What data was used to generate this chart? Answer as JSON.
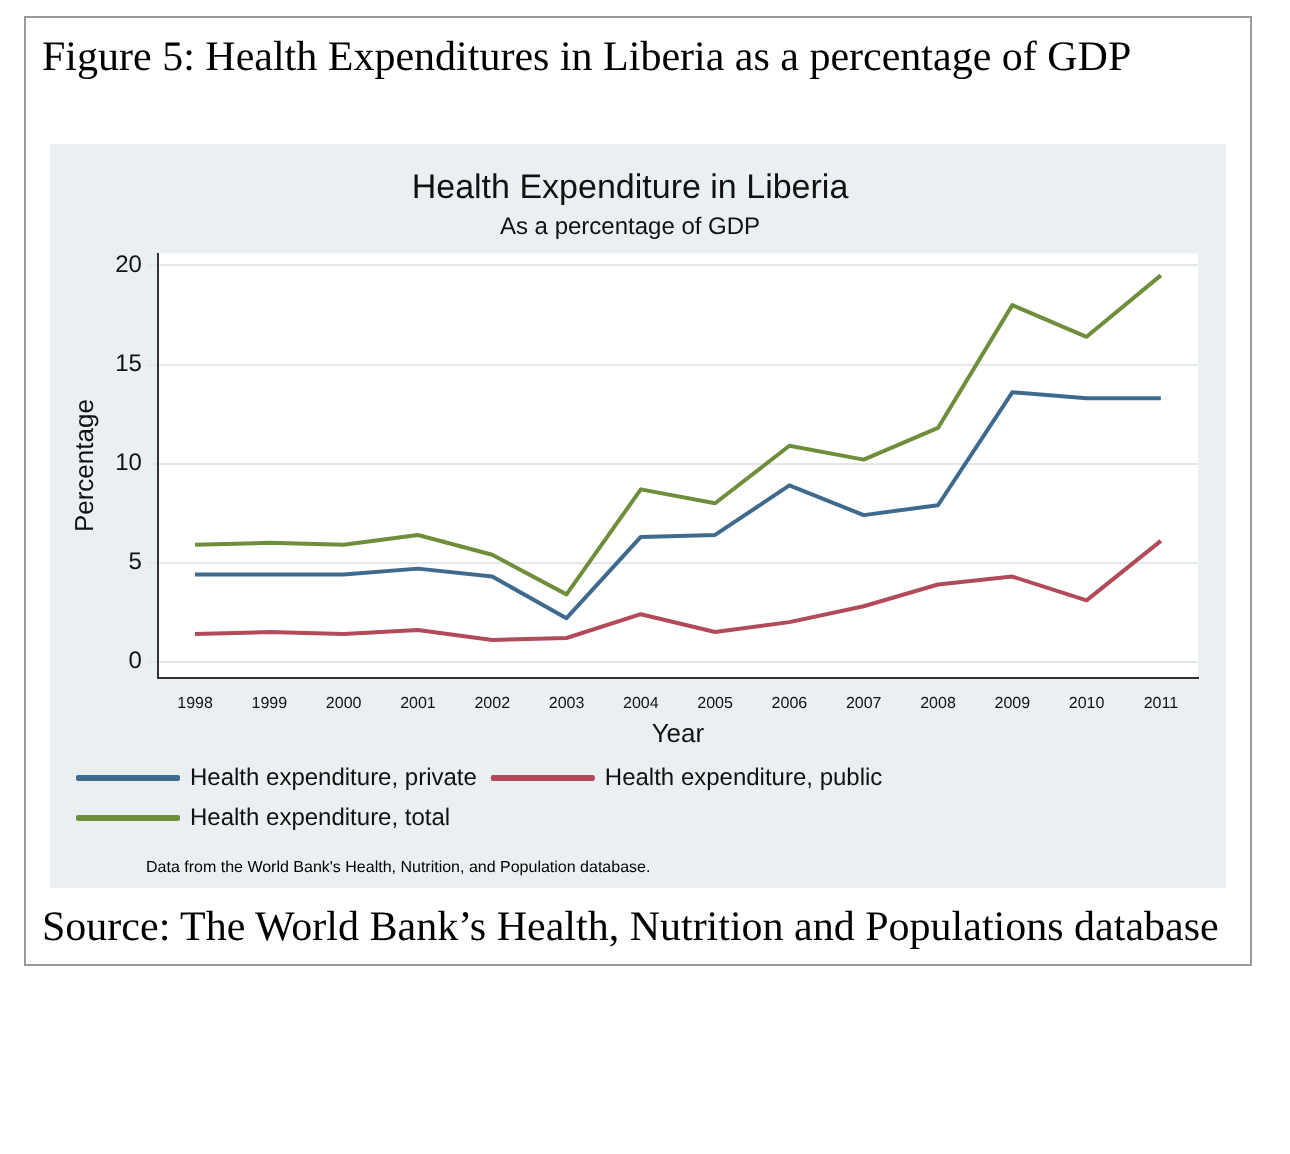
{
  "chart_data": {
    "type": "line",
    "title": "Health Expenditure in Liberia",
    "subtitle": "As a percentage of GDP",
    "xlabel": "Year",
    "ylabel": "Percentage",
    "categories": [
      "1998",
      "1999",
      "2000",
      "2001",
      "2002",
      "2003",
      "2004",
      "2005",
      "2006",
      "2007",
      "2008",
      "2009",
      "2010",
      "2011"
    ],
    "series": [
      {
        "name": "Health expenditure, private",
        "color": "#3e6a8e",
        "values": [
          4.4,
          4.4,
          4.4,
          4.7,
          4.3,
          2.2,
          6.3,
          6.4,
          8.9,
          7.4,
          7.9,
          13.6,
          13.3,
          13.3
        ]
      },
      {
        "name": "Health expenditure, public",
        "color": "#b24a5a",
        "values": [
          1.4,
          1.5,
          1.4,
          1.6,
          1.1,
          1.2,
          2.4,
          1.5,
          2.0,
          2.8,
          3.9,
          4.3,
          3.1,
          6.1
        ]
      },
      {
        "name": "Health expenditure, total",
        "color": "#6f8e3a",
        "values": [
          5.9,
          6.0,
          5.9,
          6.4,
          5.4,
          3.4,
          8.7,
          8.0,
          10.9,
          10.2,
          11.8,
          18.0,
          16.4,
          19.5
        ]
      }
    ],
    "ylim": [
      -0.8,
      20.6
    ],
    "yticks": [
      0,
      5,
      10,
      15,
      20
    ],
    "grid": "y",
    "legend": "bottom",
    "marker": "none",
    "line_style": "solid",
    "annotations": [
      "Figure 5: Health Expenditures in Liberia as a percentage of GDP",
      "Data from the World Bank's Health, Nutrition, and Population database.",
      "Source: The World Bank’s Health, Nutrition and Populations database"
    ]
  }
}
